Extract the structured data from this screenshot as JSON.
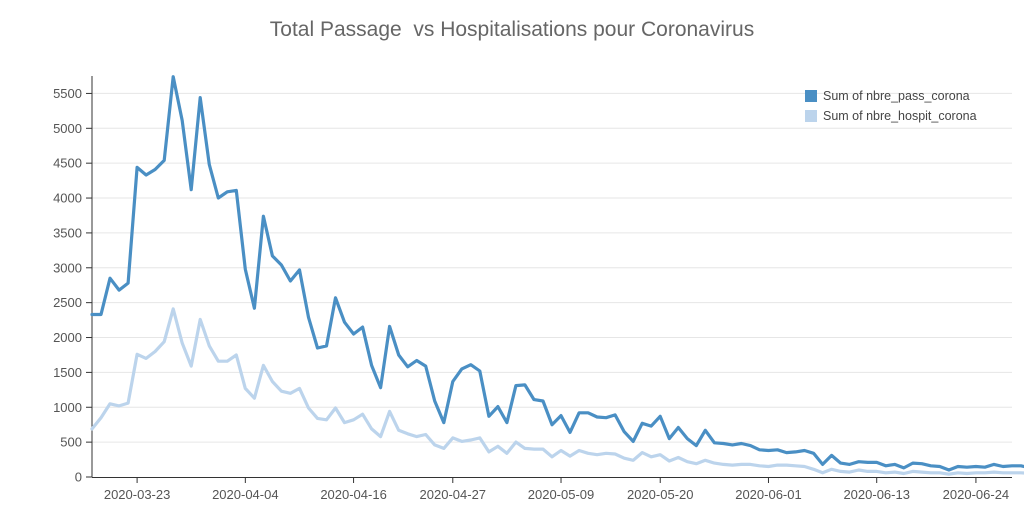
{
  "chart_data": {
    "type": "line",
    "title": "Total Passage  vs Hospitalisations pour Coronavirus",
    "xlabel": "",
    "ylabel": "",
    "ylim": [
      0,
      5750
    ],
    "yticks": [
      0,
      500,
      1000,
      1500,
      2000,
      2500,
      3000,
      3500,
      4000,
      4500,
      5000,
      5500
    ],
    "xlim": [
      "2020-03-18",
      "2020-06-28"
    ],
    "xticks": [
      "2020-03-23",
      "2020-04-04",
      "2020-04-16",
      "2020-04-27",
      "2020-05-09",
      "2020-05-20",
      "2020-06-01",
      "2020-06-13",
      "2020-06-24"
    ],
    "grid": "horizontal",
    "legend_position": "top-right",
    "x_start": "2020-03-18",
    "x_step_days": 1,
    "series": [
      {
        "name": "Sum of nbre_pass_corona",
        "color": "#4a8fc4",
        "values": [
          2330,
          2330,
          2850,
          2680,
          2780,
          4440,
          4330,
          4410,
          4540,
          5740,
          5110,
          4120,
          5440,
          4480,
          4000,
          4090,
          4110,
          2980,
          2420,
          3740,
          3170,
          3040,
          2810,
          2970,
          2290,
          1850,
          1880,
          2570,
          2220,
          2050,
          2150,
          1600,
          1280,
          2160,
          1750,
          1580,
          1670,
          1590,
          1090,
          780,
          1370,
          1550,
          1610,
          1520,
          870,
          1010,
          780,
          1310,
          1320,
          1110,
          1090,
          750,
          880,
          640,
          920,
          920,
          860,
          850,
          890,
          650,
          510,
          770,
          730,
          870,
          550,
          710,
          550,
          450,
          670,
          490,
          480,
          460,
          480,
          450,
          390,
          380,
          390,
          350,
          360,
          380,
          340,
          180,
          310,
          200,
          180,
          220,
          210,
          210,
          160,
          180,
          130,
          200,
          190,
          160,
          150,
          100,
          150,
          140,
          150,
          140,
          180,
          150,
          160,
          160,
          130
        ]
      },
      {
        "name": "Sum of nbre_hospit_corona",
        "color": "#bcd4ec",
        "values": [
          690,
          850,
          1050,
          1020,
          1060,
          1760,
          1700,
          1800,
          1940,
          2410,
          1920,
          1590,
          2260,
          1880,
          1660,
          1660,
          1750,
          1270,
          1130,
          1600,
          1370,
          1230,
          1200,
          1270,
          990,
          840,
          820,
          990,
          780,
          820,
          900,
          690,
          580,
          940,
          670,
          620,
          580,
          610,
          460,
          410,
          560,
          510,
          530,
          560,
          360,
          440,
          340,
          500,
          410,
          400,
          400,
          290,
          380,
          300,
          380,
          340,
          320,
          340,
          330,
          270,
          240,
          350,
          290,
          320,
          230,
          280,
          220,
          190,
          240,
          200,
          180,
          170,
          180,
          180,
          160,
          150,
          170,
          170,
          160,
          150,
          110,
          60,
          110,
          80,
          70,
          100,
          80,
          80,
          60,
          70,
          50,
          80,
          70,
          60,
          60,
          40,
          60,
          50,
          60,
          60,
          70,
          60,
          60,
          60,
          50
        ]
      }
    ]
  }
}
